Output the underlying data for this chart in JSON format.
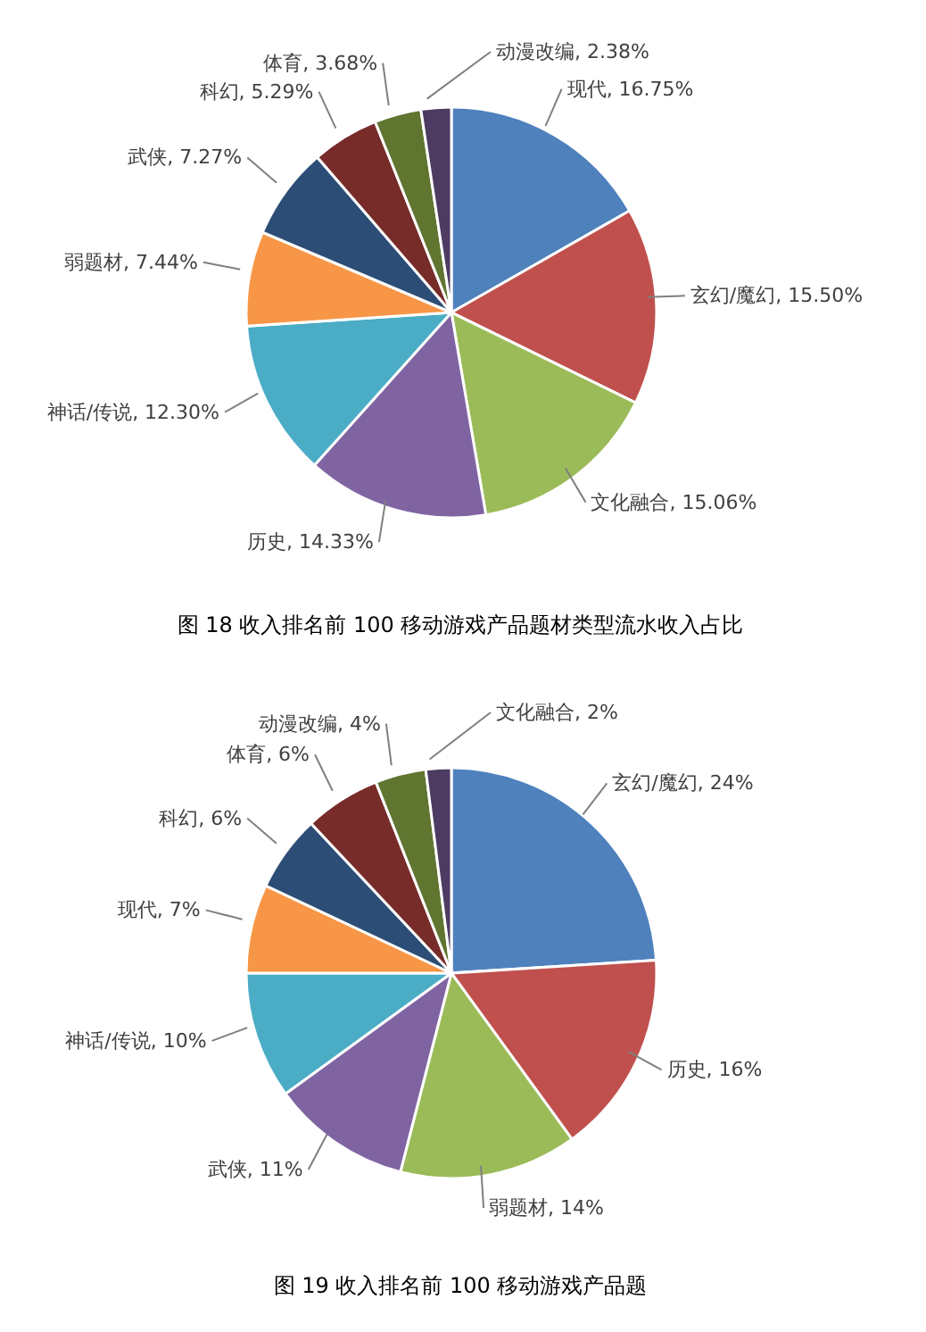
{
  "chart_data": [
    {
      "type": "pie",
      "title": "图 18  收入排名前 100 移动游戏产品题材类型流水收入占比",
      "categories": [
        "现代",
        "玄幻/魔幻",
        "文化融合",
        "历史",
        "神话/传说",
        "弱题材",
        "武侠",
        "科幻",
        "体育",
        "动漫改编"
      ],
      "values": [
        16.75,
        15.5,
        15.06,
        14.33,
        12.3,
        7.44,
        7.27,
        5.29,
        3.68,
        2.38
      ],
      "value_labels": [
        "16.75%",
        "15.50%",
        "15.06%",
        "14.33%",
        "12.30%",
        "7.44%",
        "7.27%",
        "5.29%",
        "3.68%",
        "2.38%"
      ],
      "colors": [
        "#4f81bd",
        "#c0504d",
        "#9bbb59",
        "#8064a2",
        "#4bacc6",
        "#f79646",
        "#2c4d75",
        "#772c2a",
        "#5f7530",
        "#4d3b62"
      ]
    },
    {
      "type": "pie",
      "title": "图 19  收入排名前 100 移动游戏产品题",
      "categories": [
        "玄幻/魔幻",
        "历史",
        "弱题材",
        "武侠",
        "神话/传说",
        "现代",
        "科幻",
        "体育",
        "动漫改编",
        "文化融合"
      ],
      "values": [
        24,
        16,
        14,
        11,
        10,
        7,
        6,
        6,
        4,
        2
      ],
      "value_labels": [
        "24%",
        "16%",
        "14%",
        "11%",
        "10%",
        "7%",
        "6%",
        "6%",
        "4%",
        "2%"
      ],
      "colors": [
        "#4f81bd",
        "#c0504d",
        "#9bbb59",
        "#8064a2",
        "#4bacc6",
        "#f79646",
        "#2c4d75",
        "#772c2a",
        "#5f7530",
        "#4d3b62"
      ]
    }
  ]
}
